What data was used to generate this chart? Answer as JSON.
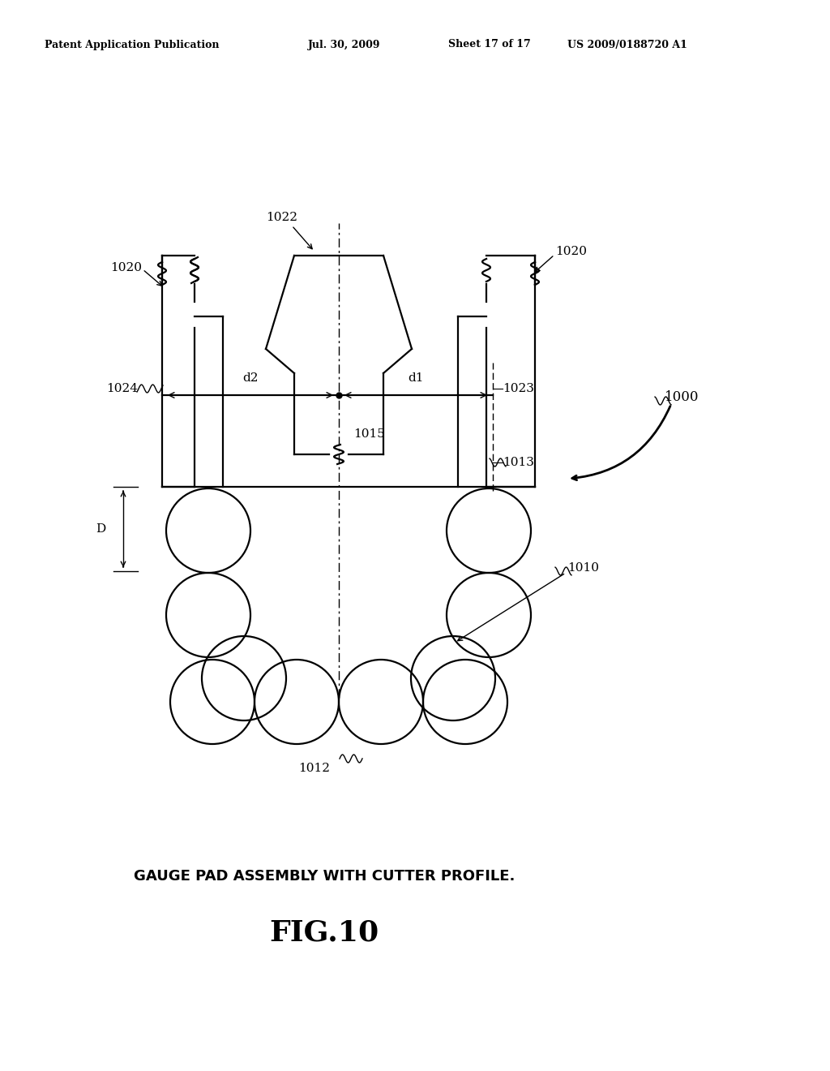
{
  "bg_color": "#ffffff",
  "header_text": "Patent Application Publication",
  "header_date": "Jul. 30, 2009",
  "header_sheet": "Sheet 17 of 17",
  "header_patent": "US 2009/0188720 A1",
  "caption": "GAUGE PAD ASSEMBLY WITH CUTTER PROFILE.",
  "fig_label": "FIG.10",
  "line_color": "#000000",
  "lw_main": 1.6,
  "lw_thin": 1.0,
  "font_size_label": 11,
  "font_size_caption": 13,
  "font_size_fig": 26,
  "font_size_header": 9
}
